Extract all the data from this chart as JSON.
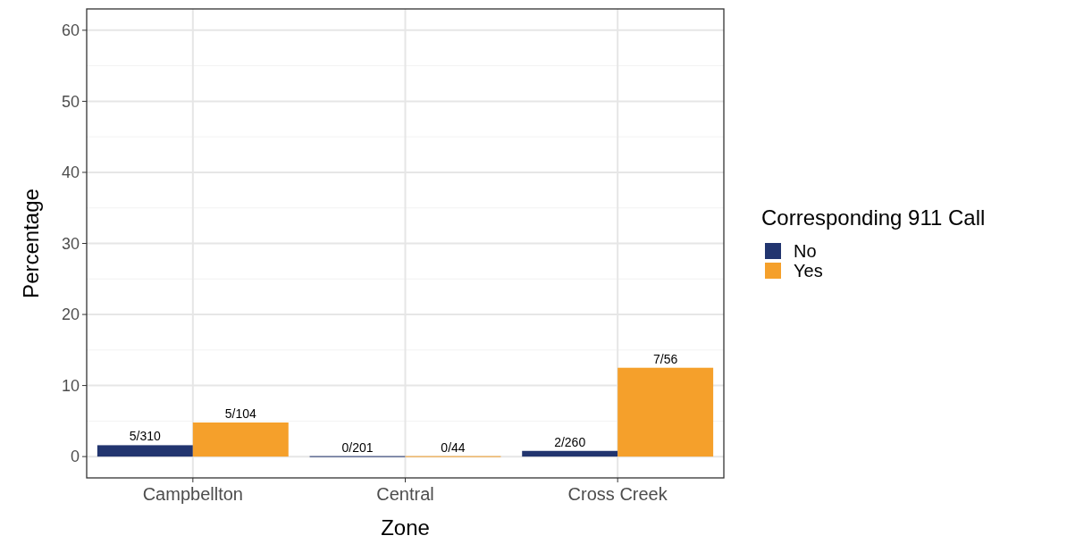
{
  "chart_data": {
    "type": "bar",
    "xlabel": "Zone",
    "ylabel": "Percentage",
    "legend_title": "Corresponding 911 Call",
    "categories": [
      "Campbellton",
      "Central",
      "Cross Creek"
    ],
    "series": [
      {
        "name": "No",
        "color": "#22356f",
        "values": [
          1.6,
          0,
          0.8
        ],
        "value_labels": [
          "5/310",
          "0/201",
          "2/260"
        ]
      },
      {
        "name": "Yes",
        "color": "#f5a02b",
        "values": [
          4.8,
          0,
          12.5
        ],
        "value_labels": [
          "5/104",
          "0/44",
          "7/56"
        ]
      }
    ],
    "ylim": [
      -3,
      63
    ],
    "yticks": [
      0,
      10,
      20,
      30,
      40,
      50,
      60
    ],
    "grid": true,
    "legend": "right"
  }
}
